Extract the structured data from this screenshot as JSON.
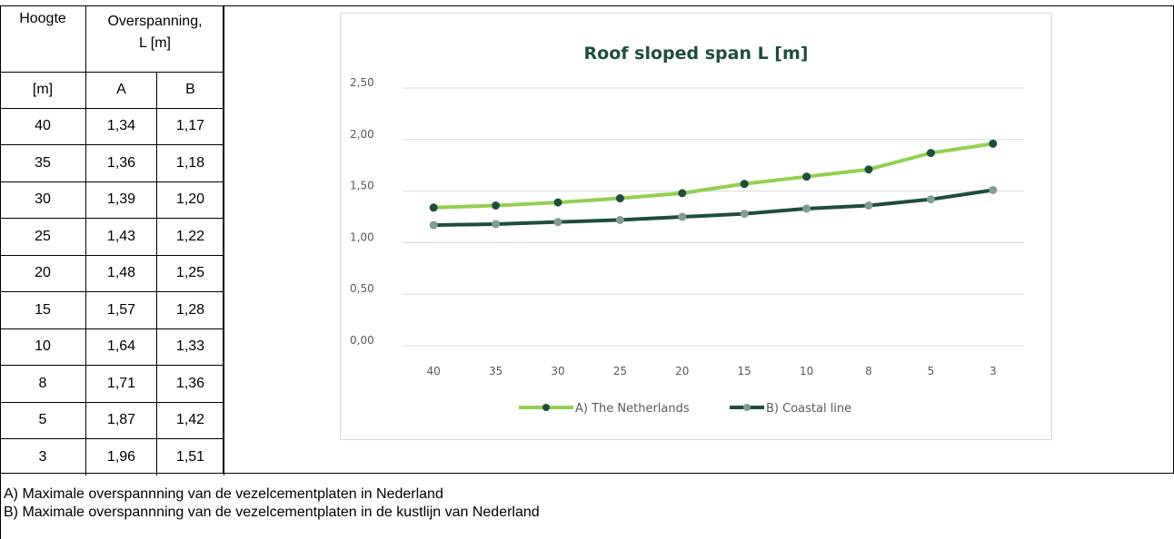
{
  "table": {
    "header_height": "Hoogte",
    "header_span": "Overspanning,",
    "header_span_unit": "L [m]",
    "unit_row": "[m]",
    "col_a": "A",
    "col_b": "B",
    "rows": [
      {
        "h": "40",
        "a": "1,34",
        "b": "1,17"
      },
      {
        "h": "35",
        "a": "1,36",
        "b": "1,18"
      },
      {
        "h": "30",
        "a": "1,39",
        "b": "1,20"
      },
      {
        "h": "25",
        "a": "1,43",
        "b": "1,22"
      },
      {
        "h": "20",
        "a": "1,48",
        "b": "1,25"
      },
      {
        "h": "15",
        "a": "1,57",
        "b": "1,28"
      },
      {
        "h": "10",
        "a": "1,64",
        "b": "1,33"
      },
      {
        "h": "8",
        "a": "1,71",
        "b": "1,36"
      },
      {
        "h": "5",
        "a": "1,87",
        "b": "1,42"
      },
      {
        "h": "3",
        "a": "1,96",
        "b": "1,51"
      }
    ]
  },
  "notes": {
    "a": "A) Maximale overspannning van de vezelcementplaten in Nederland",
    "b": "B) Maximale overspannning van de vezelcementplaten in de kustlijn van Nederland"
  },
  "chart_data": {
    "type": "line",
    "title": "Roof sloped span L [m]",
    "categories": [
      "40",
      "35",
      "30",
      "25",
      "20",
      "15",
      "10",
      "8",
      "5",
      "3"
    ],
    "ylim": [
      0,
      2.5
    ],
    "yticks": [
      "0,00",
      "0,50",
      "1,00",
      "1,50",
      "2,00",
      "2,50"
    ],
    "grid": true,
    "legend_position": "bottom",
    "series": [
      {
        "name": "A) The Netherlands",
        "values": [
          1.34,
          1.36,
          1.39,
          1.43,
          1.48,
          1.57,
          1.64,
          1.71,
          1.87,
          1.96
        ],
        "line_color": "#92d050",
        "marker_color": "#1f4e3d"
      },
      {
        "name": "B) Coastal line",
        "values": [
          1.17,
          1.18,
          1.2,
          1.22,
          1.25,
          1.28,
          1.33,
          1.36,
          1.42,
          1.51
        ],
        "line_color": "#1d4d3f",
        "marker_color": "#7f9e8f"
      }
    ],
    "title_color": "#1f4e3d"
  }
}
